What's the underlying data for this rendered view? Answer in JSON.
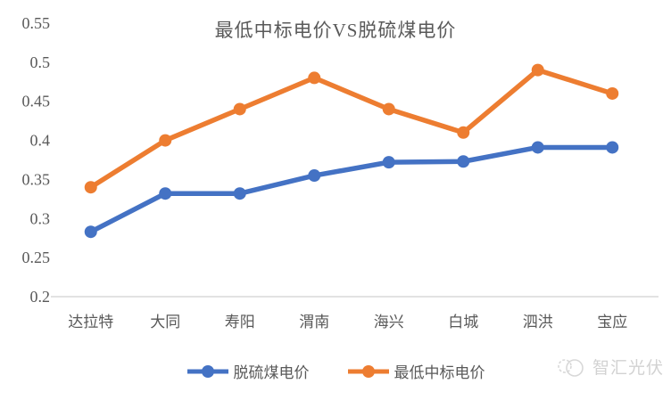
{
  "chart_data": {
    "type": "line",
    "title": "最低中标电价VS脱硫煤电价",
    "categories": [
      "达拉特",
      "大同",
      "寿阳",
      "渭南",
      "海兴",
      "白城",
      "泗洪",
      "宝应"
    ],
    "series": [
      {
        "name": "脱硫煤电价",
        "color": "#4472C4",
        "values": [
          0.283,
          0.332,
          0.332,
          0.355,
          0.372,
          0.373,
          0.391,
          0.391
        ]
      },
      {
        "name": "最低中标电价",
        "color": "#ED7D31",
        "values": [
          0.34,
          0.4,
          0.44,
          0.48,
          0.44,
          0.41,
          0.49,
          0.46
        ]
      }
    ],
    "xlabel": "",
    "ylabel": "",
    "ylim": [
      0.2,
      0.55
    ],
    "ytick_step": 0.05,
    "ytick_labels": [
      "0.2",
      "0.25",
      "0.3",
      "0.35",
      "0.4",
      "0.45",
      "0.5",
      "0.55"
    ],
    "grid": false,
    "legend_position": "bottom",
    "axis_line_color": "#d9d9d9",
    "text_color": "#595959"
  },
  "watermark": {
    "text": "智汇光伏"
  }
}
